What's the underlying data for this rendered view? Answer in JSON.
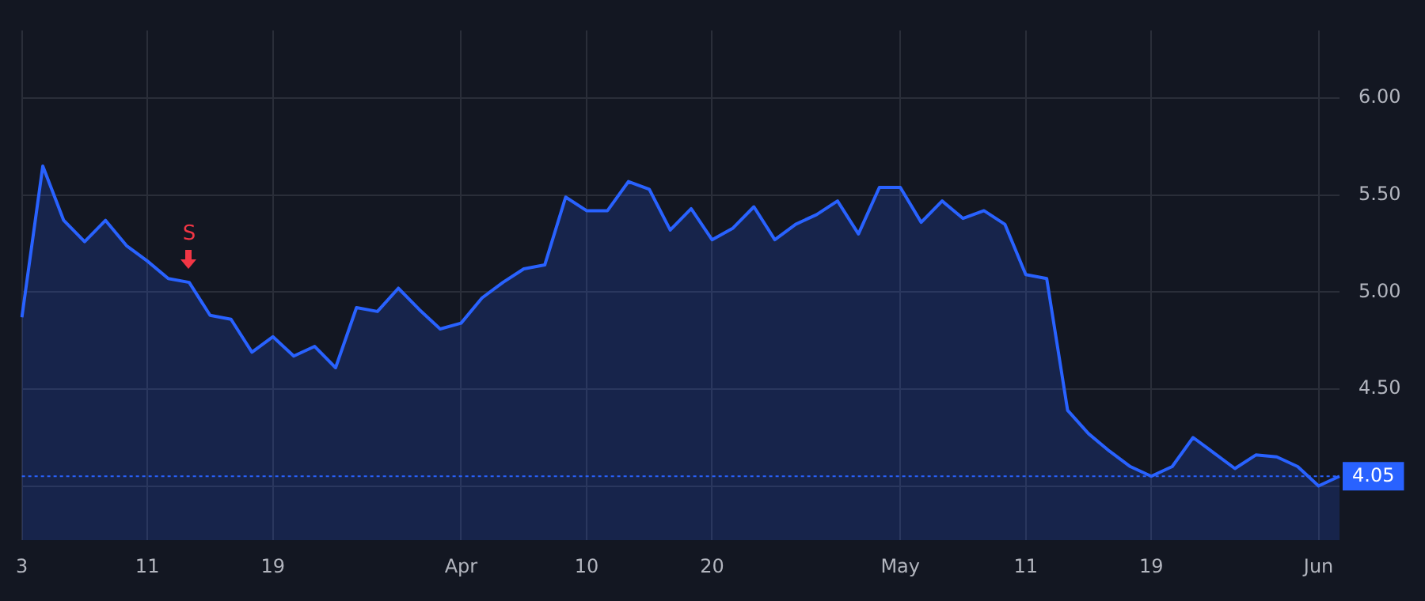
{
  "chart_data": {
    "type": "area",
    "categories": [
      "3",
      null,
      null,
      null,
      null,
      null,
      "11",
      null,
      null,
      null,
      null,
      null,
      "19",
      null,
      null,
      null,
      null,
      null,
      null,
      null,
      null,
      "Apr",
      null,
      null,
      null,
      null,
      null,
      "10",
      null,
      null,
      null,
      null,
      null,
      "20",
      null,
      null,
      null,
      null,
      null,
      null,
      null,
      null,
      "May",
      null,
      null,
      null,
      null,
      null,
      "11",
      null,
      null,
      null,
      null,
      null,
      "19",
      null,
      null,
      null,
      null,
      null,
      null,
      null,
      "Jun",
      null
    ],
    "series": [
      {
        "color": "#2962ff",
        "values": [
          4.87,
          5.65,
          5.37,
          5.26,
          5.37,
          5.24,
          5.16,
          5.07,
          5.05,
          4.88,
          4.86,
          4.69,
          4.77,
          4.67,
          4.72,
          4.61,
          4.92,
          4.9,
          5.02,
          4.91,
          4.81,
          4.84,
          4.97,
          5.05,
          5.12,
          5.14,
          5.49,
          5.42,
          5.42,
          5.57,
          5.53,
          5.32,
          5.43,
          5.27,
          5.33,
          5.44,
          5.27,
          5.35,
          5.4,
          5.47,
          5.3,
          5.54,
          5.54,
          5.36,
          5.47,
          5.38,
          5.42,
          5.35,
          5.09,
          5.07,
          4.39,
          4.27,
          4.18,
          4.1,
          4.05,
          4.1,
          4.25,
          4.17,
          4.09,
          4.16,
          4.15,
          4.1,
          4.0,
          4.05
        ]
      }
    ],
    "ylim": [
      3.72,
      6.35
    ],
    "yticks": [
      {
        "value": 4,
        "label": null
      },
      {
        "value": 4.5,
        "label": "4.50"
      },
      {
        "value": 5,
        "label": "5.00"
      },
      {
        "value": 5.5,
        "label": "5.50"
      },
      {
        "value": 6,
        "label": "6.00"
      }
    ],
    "ref_lines": [
      {
        "axis": "y",
        "value": 4.05,
        "label": "4.05",
        "color": "#2962ff",
        "line_style": "dotted"
      }
    ],
    "annotations": [
      {
        "text": "S",
        "y": 5.05
      }
    ],
    "grid": true,
    "legend": false
  }
}
